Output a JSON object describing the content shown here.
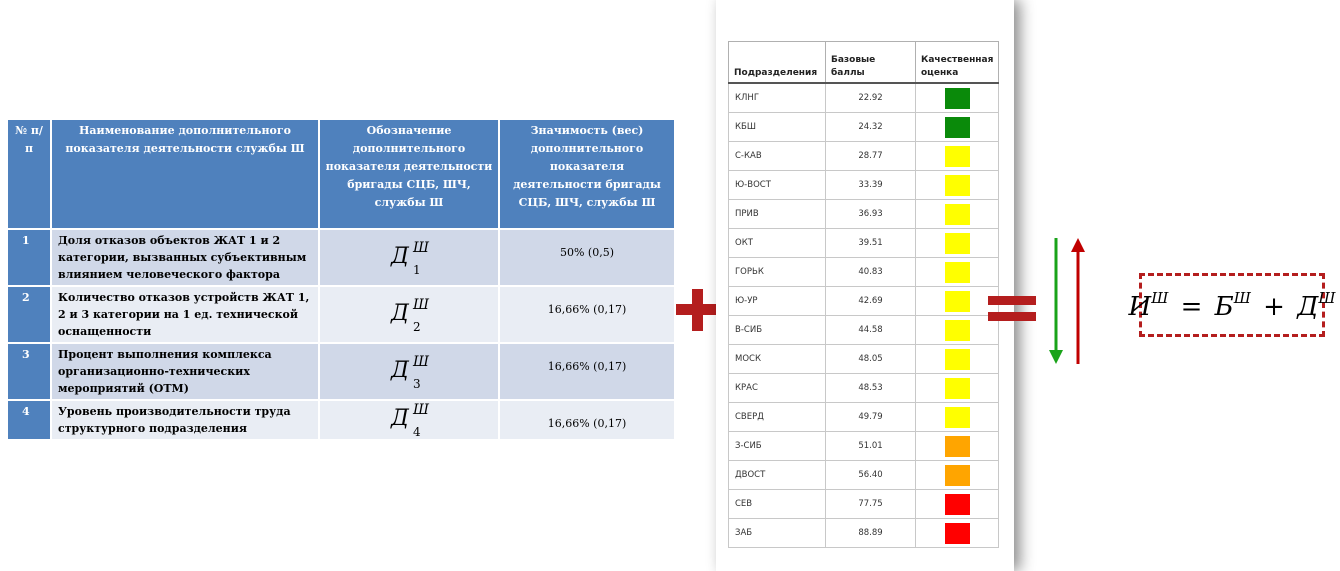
{
  "indicators_table": {
    "headers": {
      "num": "№ п/п",
      "name": "Наименование дополнительного показателя деятельности службы Ш",
      "designation": "Обозначение дополнительного показателя деятельности бригады СЦБ, ШЧ, службы Ш",
      "weight": "Значимость (вес) дополнительного показателя деятельности бригады СЦБ, ШЧ, службы Ш"
    },
    "rows": [
      {
        "num": "1",
        "name": "Доля отказов объектов ЖАТ 1 и 2 категории, вызванных субъективным влиянием человеческого фактора",
        "symbol": "Д",
        "sup": "Ш",
        "sub": "1",
        "weight": "50% (0,5)"
      },
      {
        "num": "2",
        "name": "Количество отказов устройств ЖАТ 1, 2 и 3 категории на 1 ед. технической оснащенности",
        "symbol": "Д",
        "sup": "Ш",
        "sub": "2",
        "weight": "16,66% (0,17)"
      },
      {
        "num": "3",
        "name": "Процент выполнения комплекса организационно-технических мероприятий (ОТМ)",
        "symbol": "Д",
        "sup": "Ш",
        "sub": "3",
        "weight": "16,66% (0,17)"
      },
      {
        "num": "4",
        "name": "Уровень производительности труда структурного подразделения",
        "symbol": "Д",
        "sup": "Ш",
        "sub": "4",
        "weight": "16,66% (0,17)"
      }
    ]
  },
  "scores_table": {
    "headers": {
      "division": "Подразделения",
      "base": "Базовые баллы",
      "quality": "Качественная оценка"
    },
    "rows": [
      {
        "division": "КЛНГ",
        "base": "22.92",
        "color": "#0a8a0a"
      },
      {
        "division": "КБШ",
        "base": "24.32",
        "color": "#0a8a0a"
      },
      {
        "division": "С-КАВ",
        "base": "28.77",
        "color": "#ffff00"
      },
      {
        "division": "Ю-ВОСТ",
        "base": "33.39",
        "color": "#ffff00"
      },
      {
        "division": "ПРИВ",
        "base": "36.93",
        "color": "#ffff00"
      },
      {
        "division": "ОКТ",
        "base": "39.51",
        "color": "#ffff00"
      },
      {
        "division": "ГОРЬК",
        "base": "40.83",
        "color": "#ffff00"
      },
      {
        "division": "Ю-УР",
        "base": "42.69",
        "color": "#ffff00"
      },
      {
        "division": "В-СИБ",
        "base": "44.58",
        "color": "#ffff00"
      },
      {
        "division": "МОСК",
        "base": "48.05",
        "color": "#ffff00"
      },
      {
        "division": "КРАС",
        "base": "48.53",
        "color": "#ffff00"
      },
      {
        "division": "СВЕРД",
        "base": "49.79",
        "color": "#ffff00"
      },
      {
        "division": "З-СИБ",
        "base": "51.01",
        "color": "#ffa500"
      },
      {
        "division": "ДВОСТ",
        "base": "56.40",
        "color": "#ffa500"
      },
      {
        "division": "СЕВ",
        "base": "77.75",
        "color": "#ff0000"
      },
      {
        "division": "ЗАБ",
        "base": "88.89",
        "color": "#ff0000"
      }
    ]
  },
  "formula": {
    "lhs": "И",
    "lhs_sup": "Ш",
    "eq": "=",
    "term1": "Б",
    "term1_sup": "Ш",
    "plus": "+",
    "term2": "Д",
    "term2_sup": "Ш"
  },
  "colors": {
    "accent_red": "#b41e1e",
    "header_blue": "#4f81bd",
    "arrow_green": "#1aa31a",
    "arrow_red": "#c00000"
  }
}
